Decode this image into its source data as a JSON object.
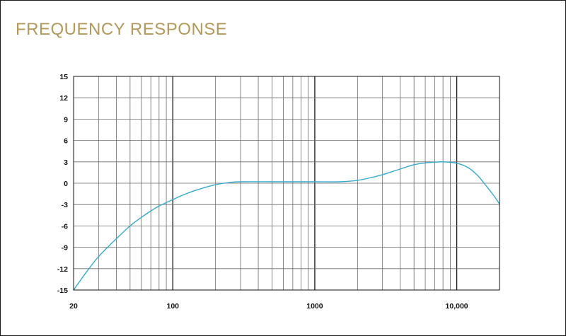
{
  "chart_data": {
    "type": "line",
    "title": "FREQUENCY RESPONSE",
    "xlabel": "",
    "ylabel": "",
    "x_scale": "log",
    "xlim": [
      20,
      20000
    ],
    "ylim": [
      -15,
      15
    ],
    "grid": true,
    "x_tick_labels": [
      {
        "value": 20,
        "label": "20"
      },
      {
        "value": 100,
        "label": "100"
      },
      {
        "value": 1000,
        "label": "1000"
      },
      {
        "value": 10000,
        "label": "10,000"
      }
    ],
    "y_ticks": [
      15,
      12,
      9,
      6,
      3,
      0,
      -3,
      -6,
      -9,
      -12,
      -15
    ],
    "y_tick_labels": [
      "15",
      "12",
      "9",
      "6",
      "3",
      "0",
      "-3",
      "-6",
      "-9",
      "-12",
      "-15"
    ],
    "series": [
      {
        "x": [
          20,
          25,
          30,
          40,
          50,
          60,
          70,
          80,
          100,
          120,
          150,
          200,
          250,
          300,
          500,
          700,
          1000,
          1500,
          2000,
          2500,
          3000,
          4000,
          5000,
          6000,
          7000,
          8000,
          10000,
          12000,
          14000,
          16000,
          18000,
          20000
        ],
        "values": [
          -15,
          -12.3,
          -10.3,
          -7.8,
          -6.0,
          -4.8,
          -3.9,
          -3.2,
          -2.3,
          -1.6,
          -0.9,
          -0.2,
          0.1,
          0.2,
          0.2,
          0.2,
          0.2,
          0.2,
          0.4,
          0.8,
          1.2,
          2.0,
          2.6,
          2.85,
          2.95,
          3.0,
          2.8,
          2.2,
          1.1,
          -0.3,
          -1.6,
          -2.9
        ]
      }
    ]
  },
  "colors": {
    "title": "#b39a5c",
    "curve": "#36aac9",
    "grid": "#6a6a6a",
    "decade_line": "#111111",
    "border": "#111111"
  }
}
